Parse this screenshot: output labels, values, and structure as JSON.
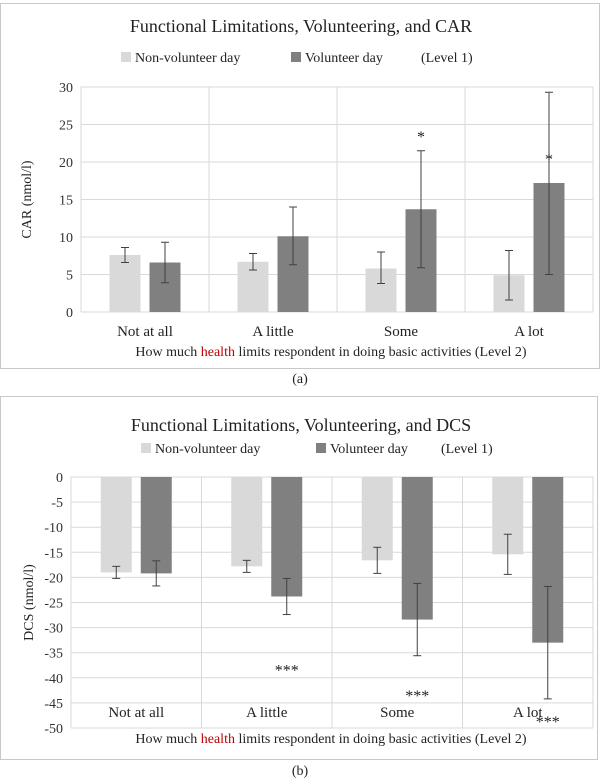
{
  "chart_data": [
    {
      "type": "bar",
      "title": "Functional Limitations, Volunteering, and CAR",
      "legend": [
        "Non-volunteer day",
        "Volunteer day"
      ],
      "legend_suffix": "(Level 1)",
      "ylabel": "CAR (nmol/l)",
      "xlabel_parts": [
        "How much ",
        "health",
        " limits respondent in doing basic activities  (Level 2)"
      ],
      "categories": [
        "Not at all",
        "A little",
        "Some",
        "A lot"
      ],
      "ylim": [
        0,
        30
      ],
      "yticks": [
        0,
        5,
        10,
        15,
        20,
        25,
        30
      ],
      "series": [
        {
          "name": "Non-volunteer day",
          "color": "#d9d9d9",
          "values": [
            7.6,
            6.7,
            5.8,
            4.9
          ],
          "err_low": [
            6.6,
            5.6,
            3.8,
            1.6
          ],
          "err_high": [
            8.6,
            7.8,
            8.0,
            8.2
          ]
        },
        {
          "name": "Volunteer day",
          "color": "#808080",
          "values": [
            6.6,
            10.1,
            13.7,
            17.2
          ],
          "err_low": [
            3.9,
            6.3,
            5.9,
            5.0
          ],
          "err_high": [
            9.3,
            14.0,
            21.5,
            29.3
          ]
        }
      ],
      "annotations": [
        {
          "category": 2,
          "series": 1,
          "text": "*",
          "y": 23.5
        },
        {
          "category": 3,
          "series": 1,
          "text": "*",
          "y": 20.5
        }
      ],
      "caption": "(a)"
    },
    {
      "type": "bar",
      "title": "Functional Limitations, Volunteering, and DCS",
      "legend": [
        "Non-volunteer day",
        "Volunteer day"
      ],
      "legend_suffix": "(Level 1)",
      "ylabel": "DCS (nmol/l)",
      "xlabel_parts": [
        "How much ",
        "health",
        " limits respondent in doing basic activities (Level 2)"
      ],
      "categories": [
        "Not at all",
        "A little",
        "Some",
        "A lot"
      ],
      "ylim": [
        -50,
        0
      ],
      "yticks": [
        0,
        -5,
        -10,
        -15,
        -20,
        -25,
        -30,
        -35,
        -40,
        -45,
        -50
      ],
      "series": [
        {
          "name": "Non-volunteer day",
          "color": "#d9d9d9",
          "values": [
            -19.0,
            -17.8,
            -16.6,
            -15.4
          ],
          "err_low": [
            -20.2,
            -19.0,
            -19.2,
            -19.4
          ],
          "err_high": [
            -17.8,
            -16.6,
            -14.0,
            -11.4
          ]
        },
        {
          "name": "Volunteer day",
          "color": "#808080",
          "values": [
            -19.2,
            -23.8,
            -28.4,
            -33.0
          ],
          "err_low": [
            -21.7,
            -27.4,
            -35.6,
            -44.2
          ],
          "err_high": [
            -16.7,
            -20.2,
            -21.2,
            -21.8
          ]
        }
      ],
      "annotations": [
        {
          "category": 1,
          "series": 1,
          "text": "***",
          "y": -38.3
        },
        {
          "category": 2,
          "series": 1,
          "text": "***",
          "y": -43.4
        },
        {
          "category": 3,
          "series": 1,
          "text": "***",
          "y": -48.6
        }
      ],
      "caption": "(b)"
    }
  ]
}
